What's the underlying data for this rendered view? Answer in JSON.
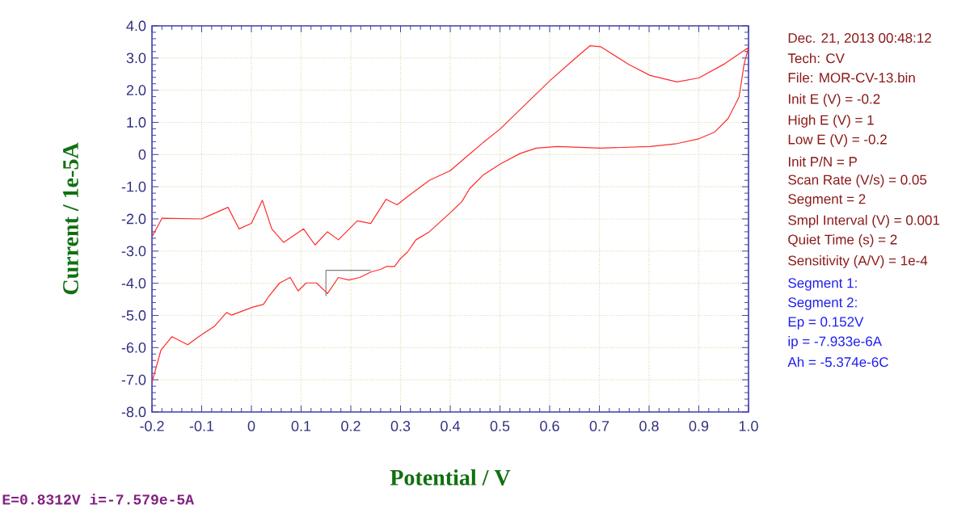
{
  "chart_data": {
    "type": "line",
    "xlabel": "Potential / V",
    "ylabel": "Current / 1e-5A",
    "xlim": [
      -0.2,
      1.0
    ],
    "ylim": [
      -8.0,
      4.0
    ],
    "xticks": [
      -0.2,
      -0.1,
      {
        "value": 0,
        "label": "0"
      },
      0.1,
      0.2,
      0.3,
      0.4,
      0.5,
      0.6,
      0.7,
      0.8,
      0.9,
      {
        "value": 1.0,
        "label": "1.0"
      }
    ],
    "yticks": [
      {
        "value": -8,
        "label": "-8.0"
      },
      {
        "value": -7,
        "label": "-7.0"
      },
      {
        "value": -6,
        "label": "-6.0"
      },
      {
        "value": -5,
        "label": "-5.0"
      },
      {
        "value": -4,
        "label": "-4.0"
      },
      {
        "value": -3,
        "label": "-3.0"
      },
      {
        "value": -2,
        "label": "-2.0"
      },
      {
        "value": -1,
        "label": "-1.0"
      },
      {
        "value": 0,
        "label": "0"
      },
      {
        "value": 1,
        "label": "1.0"
      },
      {
        "value": 2,
        "label": "2.0"
      },
      {
        "value": 3,
        "label": "3.0"
      },
      {
        "value": 4,
        "label": "4.0"
      }
    ],
    "grid": true,
    "marker": "none",
    "line_style": "solid",
    "series": [
      {
        "color": "#ff2a2a",
        "x": [
          -0.2,
          -0.18,
          -0.1,
          -0.047,
          -0.025,
          0.0,
          0.022,
          0.041,
          0.065,
          0.105,
          0.128,
          0.153,
          0.175,
          0.213,
          0.24,
          0.271,
          0.293,
          0.314,
          0.358,
          0.4,
          0.434,
          0.466,
          0.5,
          0.6,
          0.649,
          0.681,
          0.703,
          0.759,
          0.802,
          0.856,
          0.9,
          0.953,
          1.0,
          0.991,
          0.981,
          0.959,
          0.932,
          0.9,
          0.856,
          0.802,
          0.703,
          0.616,
          0.573,
          0.54,
          0.5,
          0.466,
          0.439,
          0.423,
          0.4,
          0.358,
          0.331,
          0.314,
          0.3,
          0.288,
          0.271,
          0.26,
          0.24,
          0.218,
          0.196,
          0.175,
          0.153,
          0.131,
          0.11,
          0.094,
          0.078,
          0.057,
          0.035,
          0.024,
          0.003,
          -0.04,
          -0.05,
          -0.074,
          -0.106,
          -0.128,
          -0.16,
          -0.182,
          -0.2
        ],
        "values": [
          -2.56,
          -1.98,
          -2.0,
          -1.64,
          -2.31,
          -2.14,
          -1.42,
          -2.31,
          -2.73,
          -2.31,
          -2.81,
          -2.4,
          -2.65,
          -2.06,
          -2.14,
          -1.39,
          -1.56,
          -1.31,
          -0.8,
          -0.5,
          -0.05,
          0.37,
          0.79,
          2.29,
          2.96,
          3.38,
          3.35,
          2.8,
          2.46,
          2.26,
          2.38,
          2.83,
          3.33,
          2.8,
          1.79,
          1.12,
          0.7,
          0.49,
          0.34,
          0.25,
          0.2,
          0.25,
          0.2,
          0.03,
          -0.3,
          -0.64,
          -1.06,
          -1.47,
          -1.81,
          -2.4,
          -2.65,
          -3.03,
          -3.23,
          -3.48,
          -3.48,
          -3.57,
          -3.65,
          -3.82,
          -3.9,
          -3.82,
          -4.32,
          -3.99,
          -3.99,
          -4.24,
          -3.82,
          -3.99,
          -4.41,
          -4.66,
          -4.74,
          -4.99,
          -4.91,
          -5.33,
          -5.66,
          -5.91,
          -5.66,
          -6.08,
          -7.08
        ]
      },
      {
        "color": "#808080",
        "x": [
          0.15,
          0.15,
          0.24
        ],
        "values": [
          -4.4,
          -3.6,
          -3.6
        ]
      }
    ],
    "annotations": [
      "Dec. 21, 2013   00:48:12",
      "Tech: CV",
      "File: MOR-CV-13.bin",
      "Init E (V) = -0.2",
      "High E (V) = 1",
      "Low E (V) = -0.2",
      "Init P/N = P",
      "Scan Rate (V/s) = 0.05",
      "Segment = 2",
      "Smpl Interval (V) = 0.001",
      "Quiet Time (s) = 2",
      "Sensitivity (A/V) = 1e-4",
      "Segment 1:",
      "Segment 2:",
      "Ep = 0.152V",
      "ip = -7.933e-6A",
      "Ah = -5.374e-6C",
      "E=0.8312V  i=-7.579e-5A"
    ]
  }
}
